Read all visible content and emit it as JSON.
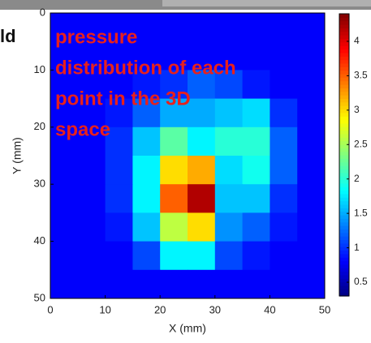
{
  "chart_data": {
    "type": "heatmap",
    "fragment_text": "ld",
    "annotation_lines": [
      "pressure",
      "distribution of each",
      "point in the 3D",
      "space"
    ],
    "xlabel": "X (mm)",
    "ylabel": "Y (mm)",
    "xbins": [
      0,
      5,
      10,
      15,
      20,
      25,
      30,
      35,
      40,
      45,
      50
    ],
    "ybins": [
      0,
      5,
      10,
      15,
      20,
      25,
      30,
      35,
      40,
      45,
      50
    ],
    "values": [
      [
        0.8,
        0.8,
        0.8,
        0.8,
        0.8,
        0.8,
        0.8,
        0.8,
        0.8,
        0.8
      ],
      [
        0.8,
        0.8,
        0.8,
        0.8,
        0.8,
        0.8,
        0.8,
        0.8,
        0.8,
        0.8
      ],
      [
        0.8,
        0.8,
        0.8,
        0.9,
        1.0,
        1.2,
        1.1,
        0.9,
        0.8,
        0.8
      ],
      [
        0.8,
        0.8,
        0.9,
        1.2,
        1.5,
        1.5,
        1.6,
        1.7,
        1.0,
        0.8
      ],
      [
        0.8,
        0.8,
        1.0,
        1.6,
        2.2,
        1.8,
        2.0,
        2.0,
        1.2,
        0.8
      ],
      [
        0.8,
        0.8,
        1.0,
        1.8,
        3.0,
        3.2,
        1.7,
        1.9,
        1.2,
        0.8
      ],
      [
        0.8,
        0.8,
        1.0,
        1.8,
        3.5,
        4.2,
        1.6,
        1.6,
        1.0,
        0.8
      ],
      [
        0.8,
        0.8,
        0.9,
        1.6,
        2.6,
        3.0,
        1.4,
        1.2,
        0.9,
        0.8
      ],
      [
        0.8,
        0.8,
        0.8,
        1.1,
        1.8,
        1.8,
        1.1,
        0.9,
        0.8,
        0.8
      ],
      [
        0.8,
        0.8,
        0.8,
        0.8,
        0.8,
        0.8,
        0.8,
        0.8,
        0.8,
        0.8
      ]
    ],
    "xlim": [
      0,
      50
    ],
    "ylim": [
      0,
      50
    ],
    "y_inverted": true,
    "xticks": [
      0,
      10,
      20,
      30,
      40,
      50
    ],
    "yticks": [
      0,
      10,
      20,
      30,
      40,
      50
    ],
    "clim": [
      0.3,
      4.4
    ],
    "cticks": [
      0.5,
      1,
      1.5,
      2,
      2.5,
      3,
      3.5,
      4
    ],
    "colormap": "jet",
    "annotation_color": "#e8201c"
  }
}
